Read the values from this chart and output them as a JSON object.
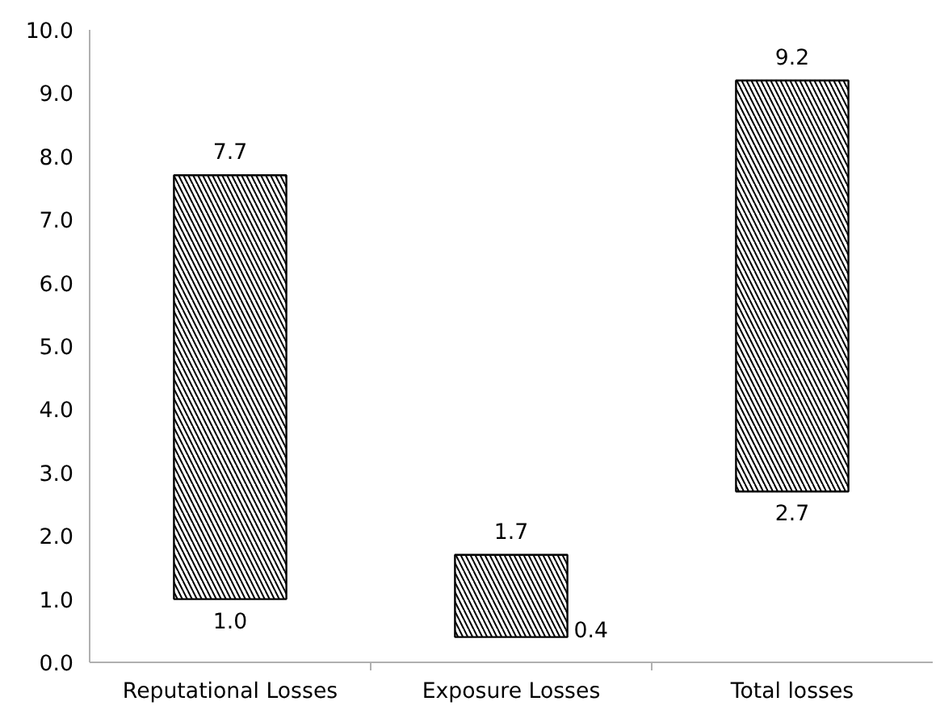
{
  "chart_data": {
    "type": "bar",
    "categories": [
      "Reputational Losses",
      "Exposure Losses",
      "Total losses"
    ],
    "base": [
      1.0,
      0.4,
      2.7
    ],
    "values": [
      6.7,
      1.3,
      6.5
    ],
    "color": "#000000",
    "ylim": [
      0,
      10
    ],
    "yticks": [
      {
        "value": 0,
        "label": "0.0"
      },
      {
        "value": 1,
        "label": "1.0"
      },
      {
        "value": 2,
        "label": "2.0"
      },
      {
        "value": 3,
        "label": "3.0"
      },
      {
        "value": 4,
        "label": "4.0"
      },
      {
        "value": 5,
        "label": "5.0"
      },
      {
        "value": 6,
        "label": "6.0"
      },
      {
        "value": 7,
        "label": "7.0"
      },
      {
        "value": 8,
        "label": "8.0"
      },
      {
        "value": 9,
        "label": "9.0"
      },
      {
        "value": 10,
        "label": "10.0"
      }
    ],
    "grid": false,
    "annotations": [
      {
        "text": "7.7",
        "x": "Reputational Losses",
        "y": 7.7
      },
      {
        "text": "1.0",
        "x": "Reputational Losses",
        "y": 1.0
      },
      {
        "text": "1.7",
        "x": "Exposure Losses",
        "y": 1.7
      },
      {
        "text": "0.4",
        "x": "Exposure Losses",
        "y": 0.4
      },
      {
        "text": "9.2",
        "x": "Total losses",
        "y": 9.2
      },
      {
        "text": "2.7",
        "x": "Total losses",
        "y": 2.7
      }
    ]
  }
}
